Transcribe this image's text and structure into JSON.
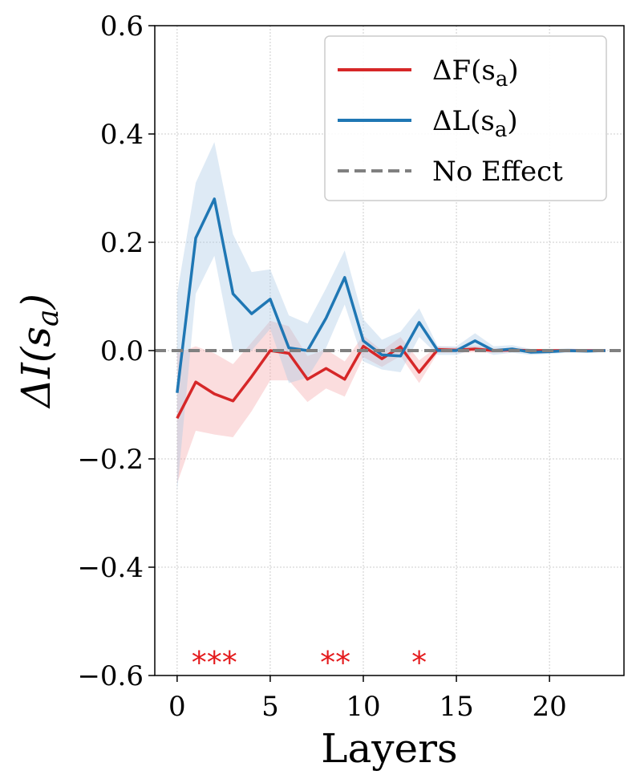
{
  "chart_data": {
    "type": "line",
    "title": "",
    "xlabel": "Layers",
    "ylabel": "ΔI(s_a)",
    "xlim": [
      -1.2,
      24
    ],
    "ylim": [
      -0.6,
      0.6
    ],
    "xticks": [
      0,
      5,
      10,
      15,
      20
    ],
    "xtick_labels": [
      "0",
      "5",
      "10",
      "15",
      "20"
    ],
    "yticks": [
      -0.6,
      -0.4,
      -0.2,
      0.0,
      0.2,
      0.4,
      0.6
    ],
    "ytick_labels": [
      "−0.6",
      "−0.4",
      "−0.2",
      "0.0",
      "0.2",
      "0.4",
      "0.6"
    ],
    "grid": true,
    "legend_position": "top-right",
    "x": [
      0,
      1,
      2,
      3,
      4,
      5,
      6,
      7,
      8,
      9,
      10,
      11,
      12,
      13,
      14,
      15,
      16,
      17,
      18,
      19,
      20,
      21,
      22,
      23
    ],
    "series": [
      {
        "name": "ΔF(s_a)",
        "color": "#d62728",
        "band_color": "#f4a6a8",
        "values": [
          -0.125,
          -0.058,
          -0.08,
          -0.093,
          -0.048,
          0.0,
          -0.005,
          -0.053,
          -0.033,
          -0.053,
          0.008,
          -0.015,
          0.007,
          -0.04,
          0.002,
          0.001,
          0.003,
          0.0,
          0.001,
          0.0,
          0.0,
          0.0,
          0.0,
          0.0
        ],
        "lower": [
          -0.245,
          -0.148,
          -0.155,
          -0.16,
          -0.112,
          -0.055,
          -0.055,
          -0.095,
          -0.07,
          -0.085,
          -0.012,
          -0.03,
          -0.01,
          -0.06,
          -0.004,
          -0.004,
          -0.003,
          -0.004,
          -0.003,
          -0.003,
          -0.003,
          -0.003,
          -0.003,
          -0.003
        ],
        "upper": [
          -0.005,
          0.008,
          -0.005,
          -0.025,
          0.015,
          0.055,
          0.045,
          -0.01,
          0.002,
          -0.02,
          0.028,
          0.0,
          0.025,
          -0.018,
          0.008,
          0.006,
          0.009,
          0.004,
          0.005,
          0.003,
          0.003,
          0.003,
          0.003,
          0.003
        ]
      },
      {
        "name": "ΔL(s_a)",
        "color": "#1f77b4",
        "band_color": "#a9c9e6",
        "values": [
          -0.078,
          0.208,
          0.28,
          0.105,
          0.068,
          0.095,
          0.005,
          0.0,
          0.06,
          0.135,
          0.018,
          -0.008,
          -0.01,
          0.052,
          0.0,
          0.0,
          0.018,
          0.0,
          0.003,
          -0.003,
          -0.002,
          0.0,
          -0.001,
          0.0
        ],
        "lower": [
          -0.26,
          0.105,
          0.175,
          0.0,
          0.0,
          0.04,
          -0.06,
          -0.05,
          0.005,
          0.085,
          -0.02,
          -0.035,
          -0.04,
          0.025,
          -0.008,
          -0.008,
          0.003,
          -0.008,
          -0.004,
          -0.008,
          -0.006,
          -0.004,
          -0.004,
          -0.003
        ],
        "upper": [
          0.105,
          0.31,
          0.385,
          0.215,
          0.145,
          0.15,
          0.065,
          0.05,
          0.115,
          0.185,
          0.058,
          0.02,
          0.035,
          0.078,
          0.008,
          0.008,
          0.032,
          0.008,
          0.01,
          0.003,
          0.002,
          0.004,
          0.002,
          0.003
        ]
      },
      {
        "name": "No Effect",
        "color": "#808080",
        "style": "dashed",
        "y": 0.0
      }
    ],
    "legend": {
      "entries": [
        {
          "label_main": "ΔF(s",
          "label_sub": "a",
          "label_close": ")",
          "color": "#d62728",
          "style": "solid"
        },
        {
          "label_main": "ΔL(s",
          "label_sub": "a",
          "label_close": ")",
          "color": "#1f77b4",
          "style": "solid"
        },
        {
          "label_main": "No Effect",
          "label_sub": "",
          "label_close": "",
          "color": "#808080",
          "style": "dashed"
        }
      ]
    },
    "ylabel_parts": {
      "main": "ΔI(s",
      "sub": "a",
      "close": ")"
    },
    "annotations": [
      {
        "text": "***",
        "x": 2,
        "y": -0.56,
        "color": "#e41a1c"
      },
      {
        "text": "**",
        "x": 8.5,
        "y": -0.56,
        "color": "#e41a1c"
      },
      {
        "text": "*",
        "x": 13,
        "y": -0.56,
        "color": "#e41a1c"
      }
    ]
  }
}
